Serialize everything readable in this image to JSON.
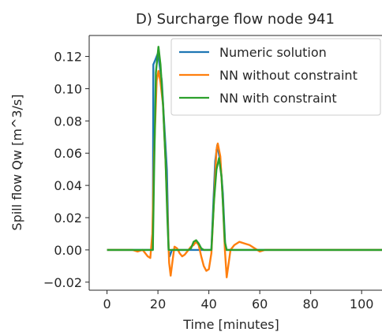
{
  "chart_data": {
    "type": "line",
    "title": "D) Surcharge flow node 941",
    "xlabel": "Time [minutes]",
    "ylabel": "Spill flow Qw [m^3/s]",
    "xlim": [
      -7,
      108
    ],
    "ylim": [
      -0.025,
      0.133
    ],
    "xticks": [
      0,
      20,
      40,
      60,
      80,
      100
    ],
    "xtick_labels": [
      "0",
      "20",
      "40",
      "60",
      "80",
      "100"
    ],
    "yticks": [
      -0.02,
      0.0,
      0.02,
      0.04,
      0.06,
      0.08,
      0.1,
      0.12
    ],
    "ytick_labels": [
      "−0.02",
      "0.00",
      "0.02",
      "0.04",
      "0.06",
      "0.08",
      "0.10",
      "0.12"
    ],
    "grid": false,
    "legend_position": "top-right",
    "series": [
      {
        "name": "Numeric solution",
        "color": "#1f77b4",
        "points": [
          [
            0,
            0
          ],
          [
            18,
            0
          ],
          [
            18.2,
            0.115
          ],
          [
            19,
            0.118
          ],
          [
            20,
            0.122
          ],
          [
            21.5,
            0.105
          ],
          [
            23.5,
            0.05
          ],
          [
            24.2,
            0.0
          ],
          [
            24.6,
            -0.004
          ],
          [
            25.5,
            0.0
          ],
          [
            41,
            0.0
          ],
          [
            41.8,
            0.03
          ],
          [
            42.5,
            0.055
          ],
          [
            43.3,
            0.065
          ],
          [
            44.5,
            0.055
          ],
          [
            45.5,
            0.035
          ],
          [
            46.5,
            0.0
          ],
          [
            60,
            0
          ],
          [
            108,
            0
          ]
        ]
      },
      {
        "name": "NN without constraint",
        "color": "#ff7f0e",
        "points": [
          [
            0,
            0
          ],
          [
            5,
            0
          ],
          [
            10,
            0
          ],
          [
            12,
            -0.001
          ],
          [
            14,
            0.0
          ],
          [
            16,
            -0.004
          ],
          [
            17,
            -0.005
          ],
          [
            17.8,
            0.01
          ],
          [
            18.5,
            0.06
          ],
          [
            19.5,
            0.105
          ],
          [
            20.2,
            0.111
          ],
          [
            21,
            0.104
          ],
          [
            22,
            0.09
          ],
          [
            23,
            0.055
          ],
          [
            23.8,
            0.02
          ],
          [
            24.4,
            -0.008
          ],
          [
            25,
            -0.016
          ],
          [
            25.8,
            -0.006
          ],
          [
            26.5,
            0.002
          ],
          [
            27.5,
            0.001
          ],
          [
            28.5,
            -0.002
          ],
          [
            29.5,
            -0.004
          ],
          [
            30.5,
            -0.003
          ],
          [
            32,
            0.0
          ],
          [
            33,
            0.002
          ],
          [
            34,
            0.003
          ],
          [
            35,
            0.005
          ],
          [
            36,
            0.003
          ],
          [
            37,
            -0.004
          ],
          [
            38,
            -0.01
          ],
          [
            39,
            -0.013
          ],
          [
            40,
            -0.012
          ],
          [
            41,
            -0.002
          ],
          [
            42,
            0.03
          ],
          [
            43,
            0.062
          ],
          [
            43.5,
            0.066
          ],
          [
            44.5,
            0.058
          ],
          [
            45.5,
            0.03
          ],
          [
            46.3,
            0.0
          ],
          [
            47,
            -0.017
          ],
          [
            47.8,
            -0.008
          ],
          [
            48.5,
            0.0
          ],
          [
            50,
            0.003
          ],
          [
            52,
            0.005
          ],
          [
            54,
            0.004
          ],
          [
            56,
            0.003
          ],
          [
            58,
            0.001
          ],
          [
            60,
            -0.001
          ],
          [
            62,
            0.0
          ],
          [
            70,
            0
          ],
          [
            108,
            0
          ]
        ]
      },
      {
        "name": "NN with constraint",
        "color": "#2ca02c",
        "points": [
          [
            0,
            0
          ],
          [
            17,
            0
          ],
          [
            18,
            0.0
          ],
          [
            18.5,
            0.05
          ],
          [
            19.2,
            0.11
          ],
          [
            20.2,
            0.126
          ],
          [
            21,
            0.115
          ],
          [
            22,
            0.09
          ],
          [
            23,
            0.055
          ],
          [
            23.7,
            0.02
          ],
          [
            24.2,
            0.0
          ],
          [
            26,
            0.0
          ],
          [
            28,
            0.0
          ],
          [
            30,
            0.0
          ],
          [
            32,
            0.0
          ],
          [
            33,
            0.001
          ],
          [
            34,
            0.005
          ],
          [
            35,
            0.006
          ],
          [
            36,
            0.004
          ],
          [
            37,
            0.001
          ],
          [
            38,
            0.0
          ],
          [
            41,
            0.0
          ],
          [
            42,
            0.03
          ],
          [
            43,
            0.05
          ],
          [
            44,
            0.057
          ],
          [
            45,
            0.045
          ],
          [
            45.8,
            0.02
          ],
          [
            46.3,
            0.005
          ],
          [
            47,
            0.0
          ],
          [
            60,
            0.0
          ],
          [
            108,
            0
          ]
        ]
      }
    ]
  }
}
